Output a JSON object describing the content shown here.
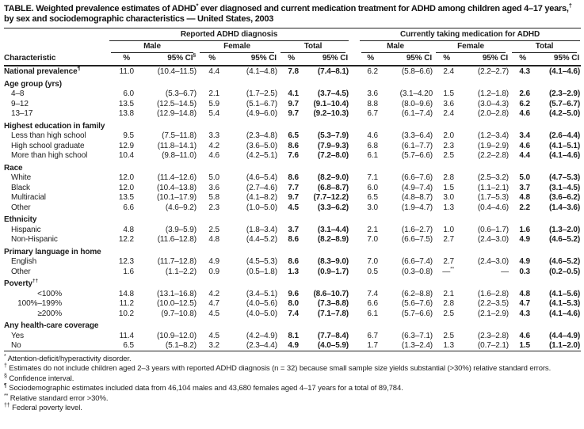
{
  "title": {
    "segments": [
      {
        "text": "TABLE. Weighted prevalence estimates of ADHD"
      },
      {
        "text": "*",
        "sup": true
      },
      {
        "text": " ever diagnosed and current medication treatment for ADHD among children aged 4–17 years,"
      },
      {
        "text": "†",
        "sup": true
      },
      {
        "text": " by sex and sociodemographic characteristics — United States, 2003"
      }
    ]
  },
  "table": {
    "characteristic_header": "Characteristic",
    "group_headers": [
      {
        "label": "Reported ADHD diagnosis"
      },
      {
        "label": "Currently taking medication for ADHD"
      }
    ],
    "subgroup_headers": [
      "Male",
      "Female",
      "Total"
    ],
    "pct_header": "%",
    "ci_header": "95% CI",
    "ci_header_sup": "§",
    "rows": [
      {
        "type": "data",
        "label": "National prevalence",
        "sup": "¶",
        "bold_label": true,
        "cells": [
          "11.0",
          "(10.4–11.5)",
          "4.4",
          "(4.1–4.8)",
          "7.8",
          "(7.4–8.1)",
          "6.2",
          "(5.8–6.6)",
          "2.4",
          "(2.2–2.7)",
          "4.3",
          "(4.1–4.6)"
        ]
      },
      {
        "type": "section",
        "label": "Age group (yrs)"
      },
      {
        "type": "data",
        "label": "4–8",
        "cells": [
          "6.0",
          "(5.3–6.7)",
          "2.1",
          "(1.7–2.5)",
          "4.1",
          "(3.7–4.5)",
          "3.6",
          "(3.1–4.20",
          "1.5",
          "(1.2–1.8)",
          "2.6",
          "(2.3–2.9)"
        ]
      },
      {
        "type": "data",
        "label": "9–12",
        "cells": [
          "13.5",
          "(12.5–14.5)",
          "5.9",
          "(5.1–6.7)",
          "9.7",
          "(9.1–10.4)",
          "8.8",
          "(8.0–9.6)",
          "3.6",
          "(3.0–4.3)",
          "6.2",
          "(5.7–6.7)"
        ]
      },
      {
        "type": "data",
        "label": "13–17",
        "cells": [
          "13.8",
          "(12.9–14.8)",
          "5.4",
          "(4.9–6.0)",
          "9.7",
          "(9.2–10.3)",
          "6.7",
          "(6.1–7.4)",
          "2.4",
          "(2.0–2.8)",
          "4.6",
          "(4.2–5.0)"
        ]
      },
      {
        "type": "section",
        "label": "Highest education in family"
      },
      {
        "type": "data",
        "label": "Less than high school",
        "cells": [
          "9.5",
          "(7.5–11.8)",
          "3.3",
          "(2.3–4.8)",
          "6.5",
          "(5.3–7.9)",
          "4.6",
          "(3.3–6.4)",
          "2.0",
          "(1.2–3.4)",
          "3.4",
          "(2.6–4.4)"
        ]
      },
      {
        "type": "data",
        "label": "High school graduate",
        "cells": [
          "12.9",
          "(11.8–14.1)",
          "4.2",
          "(3.6–5.0)",
          "8.6",
          "(7.9–9.3)",
          "6.8",
          "(6.1–7.7)",
          "2.3",
          "(1.9–2.9)",
          "4.6",
          "(4.1–5.1)"
        ]
      },
      {
        "type": "data",
        "label": "More than high school",
        "cells": [
          "10.4",
          "(9.8–11.0)",
          "4.6",
          "(4.2–5.1)",
          "7.6",
          "(7.2–8.0)",
          "6.1",
          "(5.7–6.6)",
          "2.5",
          "(2.2–2.8)",
          "4.4",
          "(4.1–4.6)"
        ]
      },
      {
        "type": "section",
        "label": "Race"
      },
      {
        "type": "data",
        "label": "White",
        "cells": [
          "12.0",
          "(11.4–12.6)",
          "5.0",
          "(4.6–5.4)",
          "8.6",
          "(8.2–9.0)",
          "7.1",
          "(6.6–7.6)",
          "2.8",
          "(2.5–3.2)",
          "5.0",
          "(4.7–5.3)"
        ]
      },
      {
        "type": "data",
        "label": "Black",
        "cells": [
          "12.0",
          "(10.4–13.8)",
          "3.6",
          "(2.7–4.6)",
          "7.7",
          "(6.8–8.7)",
          "6.0",
          "(4.9–7.4)",
          "1.5",
          "(1.1–2.1)",
          "3.7",
          "(3.1–4.5)"
        ]
      },
      {
        "type": "data",
        "label": "Multiracial",
        "cells": [
          "13.5",
          "(10.1–17.9)",
          "5.8",
          "(4.1–8.2)",
          "9.7",
          "(7.7–12.2)",
          "6.5",
          "(4.8–8.7)",
          "3.0",
          "(1.7–5.3)",
          "4.8",
          "(3.6–6.2)"
        ]
      },
      {
        "type": "data",
        "label": "Other",
        "cells": [
          "6.6",
          "(4.6–9.2)",
          "2.3",
          "(1.0–5.0)",
          "4.5",
          "(3.3–6.2)",
          "3.0",
          "(1.9–4.7)",
          "1.3",
          "(0.4–4.6)",
          "2.2",
          "(1.4–3.6)"
        ]
      },
      {
        "type": "section",
        "label": "Ethnicity"
      },
      {
        "type": "data",
        "label": "Hispanic",
        "cells": [
          "4.8",
          "(3.9–5.9)",
          "2.5",
          "(1.8–3.4)",
          "3.7",
          "(3.1–4.4)",
          "2.1",
          "(1.6–2.7)",
          "1.0",
          "(0.6–1.7)",
          "1.6",
          "(1.3–2.0)"
        ]
      },
      {
        "type": "data",
        "label": "Non-Hispanic",
        "cells": [
          "12.2",
          "(11.6–12.8)",
          "4.8",
          "(4.4–5.2)",
          "8.6",
          "(8.2–8.9)",
          "7.0",
          "(6.6–7.5)",
          "2.7",
          "(2.4–3.0)",
          "4.9",
          "(4.6–5.2)"
        ]
      },
      {
        "type": "section",
        "label": "Primary language in home"
      },
      {
        "type": "data",
        "label": "English",
        "cells": [
          "12.3",
          "(11.7–12.8)",
          "4.9",
          "(4.5–5.3)",
          "8.6",
          "(8.3–9.0)",
          "7.0",
          "(6.6–7.4)",
          "2.7",
          "(2.4–3.0)",
          "4.9",
          "(4.6–5.2)"
        ]
      },
      {
        "type": "data",
        "label": "Other",
        "cells": [
          "1.6",
          "(1.1–2.2)",
          "0.9",
          "(0.5–1.8)",
          "1.3",
          "(0.9–1.7)",
          "0.5",
          "(0.3–0.8)",
          "—**",
          "—",
          "0.3",
          "(0.2–0.5)"
        ]
      },
      {
        "type": "section",
        "label": "Poverty",
        "sup": "††"
      },
      {
        "type": "data",
        "label": "<100%",
        "align": "right",
        "cells": [
          "14.8",
          "(13.1–16.8)",
          "4.2",
          "(3.4–5.1)",
          "9.6",
          "(8.6–10.7)",
          "7.4",
          "(6.2–8.8)",
          "2.1",
          "(1.6–2.8)",
          "4.8",
          "(4.1–5.6)"
        ]
      },
      {
        "type": "data",
        "label": "100%–199%",
        "align": "right",
        "cells": [
          "11.2",
          "(10.0–12.5)",
          "4.7",
          "(4.0–5.6)",
          "8.0",
          "(7.3–8.8)",
          "6.6",
          "(5.6–7.6)",
          "2.8",
          "(2.2–3.5)",
          "4.7",
          "(4.1–5.3)"
        ]
      },
      {
        "type": "data",
        "label": "≥200%",
        "align": "right",
        "cells": [
          "10.2",
          "(9.7–10.8)",
          "4.5",
          "(4.0–5.0)",
          "7.4",
          "(7.1–7.8)",
          "6.1",
          "(5.7–6.6)",
          "2.5",
          "(2.1–2.9)",
          "4.3",
          "(4.1–4.6)"
        ]
      },
      {
        "type": "section",
        "label": "Any health-care coverage"
      },
      {
        "type": "data",
        "label": "Yes",
        "cells": [
          "11.4",
          "(10.9–12.0)",
          "4.5",
          "(4.2–4.9)",
          "8.1",
          "(7.7–8.4)",
          "6.7",
          "(6.3–7.1)",
          "2.5",
          "(2.3–2.8)",
          "4.6",
          "(4.4–4.9)"
        ]
      },
      {
        "type": "data",
        "label": "No",
        "cells": [
          "6.5",
          "(5.1–8.2)",
          "3.2",
          "(2.3–4.4)",
          "4.9",
          "(4.0–5.9)",
          "1.7",
          "(1.3–2.4)",
          "1.3",
          "(0.7–2.1)",
          "1.5",
          "(1.1–2.0)"
        ]
      }
    ]
  },
  "footnotes": [
    {
      "marker": "*",
      "text": "Attention-deficit/hyperactivity disorder."
    },
    {
      "marker": "†",
      "text": "Estimates do not include children aged 2–3 years with reported ADHD diagnosis (n = 32) because small sample size yields substantial (>30%) relative standard errors."
    },
    {
      "marker": "§",
      "text": "Confidence interval."
    },
    {
      "marker": "¶",
      "text": "Sociodemographic estimates included data from 46,104 males and 43,680 females aged 4–17 years for a total of 89,784."
    },
    {
      "marker": "**",
      "text": "Relative standard error >30%."
    },
    {
      "marker": "††",
      "text": "Federal poverty level."
    }
  ]
}
